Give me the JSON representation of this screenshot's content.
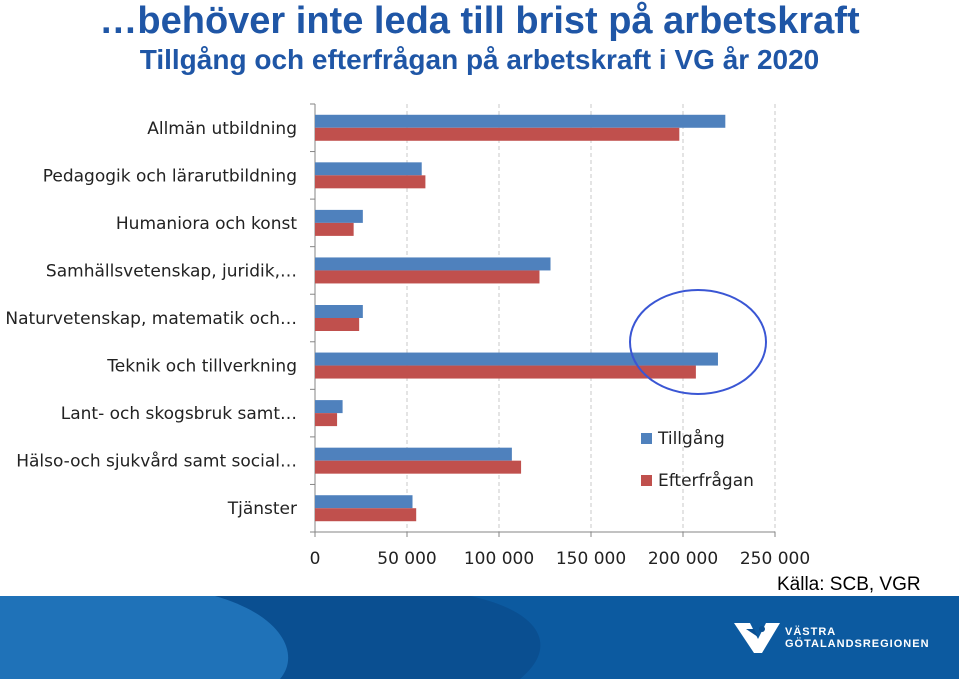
{
  "header": {
    "title": "…behöver inte leda till brist på arbetskraft",
    "subtitle": "Tillgång och efterfrågan på arbetskraft i VG år 2020"
  },
  "chart_data": {
    "type": "bar",
    "orientation": "horizontal",
    "categories": [
      "Allmän utbildning",
      "Pedagogik och lärarutbildning",
      "Humaniora och konst",
      "Samhällsvetenskap, juridik,…",
      "Naturvetenskap, matematik och…",
      "Teknik och tillverkning",
      "Lant- och skogsbruk samt…",
      "Hälso-och sjukvård samt social…",
      "Tjänster"
    ],
    "series": [
      {
        "name": "Tillgång",
        "color": "#4f81bd",
        "values": [
          223000,
          58000,
          26000,
          128000,
          26000,
          219000,
          15000,
          107000,
          53000
        ]
      },
      {
        "name": "Efterfrågan",
        "color": "#c0504d",
        "values": [
          198000,
          60000,
          21000,
          122000,
          24000,
          207000,
          12000,
          112000,
          55000
        ]
      }
    ],
    "xlim": [
      0,
      250000
    ],
    "xticks": [
      0,
      50000,
      100000,
      150000,
      200000,
      250000
    ],
    "xtick_labels": [
      "0",
      "50 000",
      "100 000",
      "150 000",
      "200 000",
      "250 000"
    ],
    "grid": "vertical dashed",
    "legend": "right",
    "annotation": "circle around top of Allmän utbildning and Teknik och tillverkning bars"
  },
  "source": "Källa: SCB, VGR",
  "footer": {
    "colors": {
      "dark": "#0a4f91",
      "light": "#1f72b8"
    },
    "logo_line1": "VÄSTRA",
    "logo_line2": "GÖTALANDSREGIONEN"
  }
}
